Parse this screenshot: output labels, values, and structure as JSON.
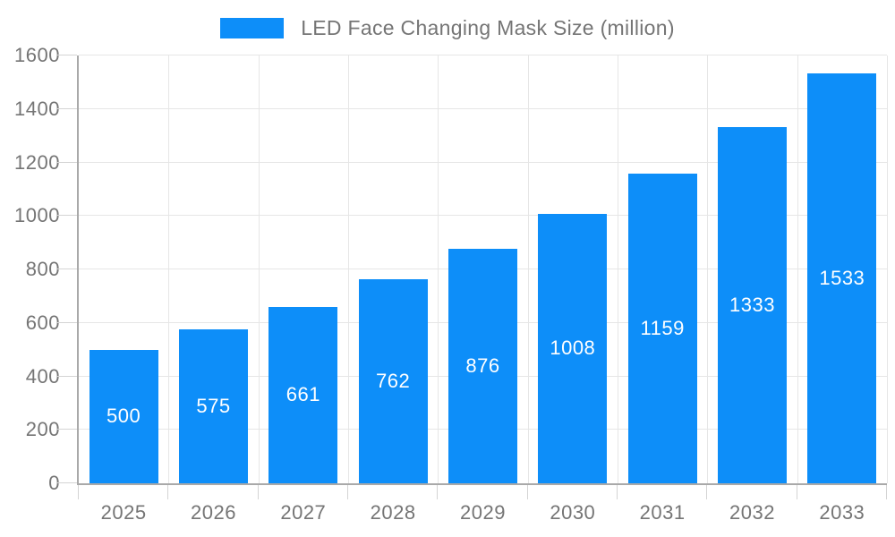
{
  "chart_data": {
    "type": "bar",
    "title": "LED Face Changing Mask Size (million)",
    "categories": [
      "2025",
      "2026",
      "2027",
      "2028",
      "2029",
      "2030",
      "2031",
      "2032",
      "2033"
    ],
    "values": [
      500,
      575,
      661,
      762,
      876,
      1008,
      1159,
      1333,
      1533
    ],
    "xlabel": "",
    "ylabel": "",
    "ylim": [
      0,
      1600
    ],
    "yticks": [
      0,
      200,
      400,
      600,
      800,
      1000,
      1200,
      1400,
      1600
    ],
    "grid": true,
    "legend_position": "top",
    "bar_color": "#0d8ef9",
    "bar_label_color": "#ffffff",
    "axis_line_color": "#a9a9a9",
    "grid_line_color": "#e6e6e6",
    "tick_line_color": "#d4d4d4",
    "axis_text_color": "#757575"
  }
}
